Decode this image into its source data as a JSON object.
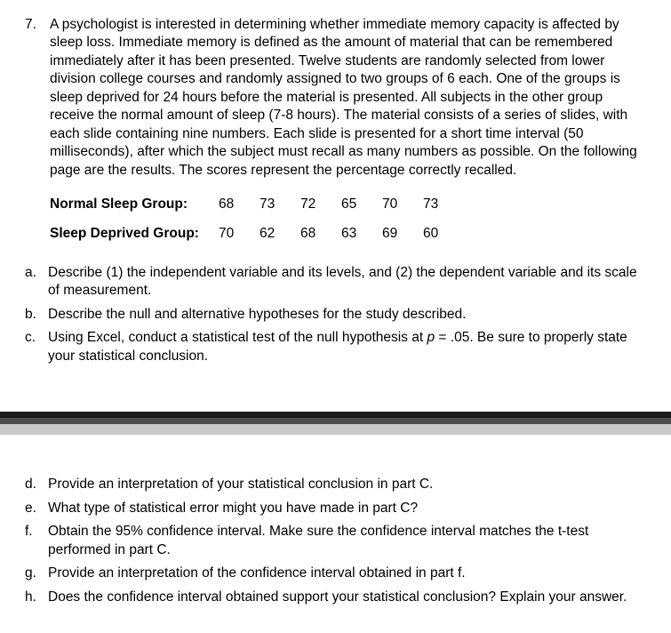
{
  "question": {
    "number": "7.",
    "prompt": "A psychologist is interested in determining whether immediate memory capacity is affected by sleep loss. Immediate memory is defined as the amount of material that can be remembered immediately after it has been presented. Twelve students are randomly selected from lower division college courses and randomly assigned to two groups of 6 each. One of the groups is sleep deprived for 24 hours before the material is presented. All subjects in the other group receive the normal amount of sleep (7-8 hours). The material consists of a series of slides, with each slide containing nine numbers. Each slide is presented for a short time interval (50 milliseconds), after which the subject must recall as many numbers as possible. On the following page are the results. The scores represent the percentage correctly recalled."
  },
  "groups": [
    {
      "label": "Normal Sleep Group:",
      "values": [
        "68",
        "73",
        "72",
        "65",
        "70",
        "73"
      ]
    },
    {
      "label": "Sleep Deprived Group:",
      "values": [
        "70",
        "62",
        "68",
        "63",
        "69",
        "60"
      ]
    }
  ],
  "subparts_top": [
    {
      "letter": "a.",
      "text": "Describe (1) the independent variable and its levels, and (2) the dependent variable and its scale of measurement."
    },
    {
      "letter": "b.",
      "text": "Describe the null and alternative hypotheses for the study described."
    },
    {
      "letter": "c.",
      "text_pre": "Using Excel, conduct a statistical test of the null hypothesis at ",
      "text_p": "p",
      "text_post": " = .05. Be sure to properly state your statistical conclusion."
    }
  ],
  "subparts_bottom": [
    {
      "letter": "d.",
      "text": "Provide an interpretation of your statistical conclusion in part C."
    },
    {
      "letter": "e.",
      "text": "What type of statistical error might you have made in part C?"
    },
    {
      "letter": "f.",
      "text": "Obtain the 95% confidence interval. Make sure the confidence interval matches the t-test performed in part C."
    },
    {
      "letter": "g.",
      "text": "Provide an interpretation of the confidence interval obtained in part f."
    },
    {
      "letter": "h.",
      "text": "Does the confidence interval obtained support your statistical conclusion? Explain your answer."
    }
  ]
}
